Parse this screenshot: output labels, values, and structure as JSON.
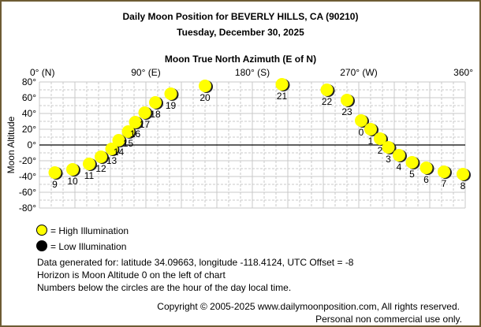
{
  "chart_data": {
    "type": "scatter",
    "title": "Daily Moon Position for BEVERLY HILLS, CA (90210)",
    "subtitle": "Tuesday, December 30, 2025",
    "xlabel": "Moon True North Azimuth (E of N)",
    "ylabel": "Moon Altitude",
    "xlim": [
      0,
      360
    ],
    "ylim": [
      -80,
      80
    ],
    "grid": true,
    "x_ticks": [
      {
        "v": 0,
        "label": "0° (N)"
      },
      {
        "v": 90,
        "label": "90° (E)"
      },
      {
        "v": 180,
        "label": "180° (S)"
      },
      {
        "v": 270,
        "label": "270° (W)"
      },
      {
        "v": 360,
        "label": "360°"
      }
    ],
    "y_ticks": [
      {
        "v": 80,
        "label": "80°"
      },
      {
        "v": 60,
        "label": "60°"
      },
      {
        "v": 40,
        "label": "40°"
      },
      {
        "v": 20,
        "label": "20°"
      },
      {
        "v": 0,
        "label": "0°"
      },
      {
        "v": -20,
        "label": "-20°"
      },
      {
        "v": -40,
        "label": "-40°"
      },
      {
        "v": -60,
        "label": "-60°"
      },
      {
        "v": -80,
        "label": "-80°"
      }
    ],
    "points": [
      {
        "hour": "9",
        "az": 13,
        "alt": -35
      },
      {
        "hour": "10",
        "az": 28,
        "alt": -31
      },
      {
        "hour": "11",
        "az": 42,
        "alt": -24
      },
      {
        "hour": "12",
        "az": 52,
        "alt": -15
      },
      {
        "hour": "13",
        "az": 61,
        "alt": -5
      },
      {
        "hour": "14",
        "az": 67,
        "alt": 6
      },
      {
        "hour": "15",
        "az": 75,
        "alt": 17
      },
      {
        "hour": "16",
        "az": 81,
        "alt": 29
      },
      {
        "hour": "17",
        "az": 89,
        "alt": 41
      },
      {
        "hour": "18",
        "az": 98,
        "alt": 54
      },
      {
        "hour": "19",
        "az": 111,
        "alt": 65
      },
      {
        "hour": "20",
        "az": 140,
        "alt": 75
      },
      {
        "hour": "21",
        "az": 205,
        "alt": 77
      },
      {
        "hour": "22",
        "az": 243,
        "alt": 70
      },
      {
        "hour": "23",
        "az": 260,
        "alt": 57
      },
      {
        "hour": "0",
        "az": 272,
        "alt": 31
      },
      {
        "hour": "1",
        "az": 280,
        "alt": 20
      },
      {
        "hour": "2",
        "az": 288,
        "alt": 8
      },
      {
        "hour": "3",
        "az": 295,
        "alt": -3
      },
      {
        "hour": "4",
        "az": 304,
        "alt": -13
      },
      {
        "hour": "5",
        "az": 315,
        "alt": -22
      },
      {
        "hour": "6",
        "az": 327,
        "alt": -29
      },
      {
        "hour": "7",
        "az": 342,
        "alt": -34
      },
      {
        "hour": "8",
        "az": 358,
        "alt": -37
      }
    ],
    "legend": [
      {
        "label": "= High Illumination",
        "color": "#ffff00"
      },
      {
        "label": "= Low Illumination",
        "color": "#000000"
      }
    ]
  },
  "notes": [
    "Data generated for: latitude 34.09663, longitude -118.4124, UTC Offset = -8",
    "Horizon is Moon Altitude 0 on the left of chart",
    "Numbers below the circles are the hour of the day local time."
  ],
  "copyright": "Copyright © 2005-2025 www.dailymoonposition.com, All rights reserved.",
  "usage": "Personal non commercial use only."
}
